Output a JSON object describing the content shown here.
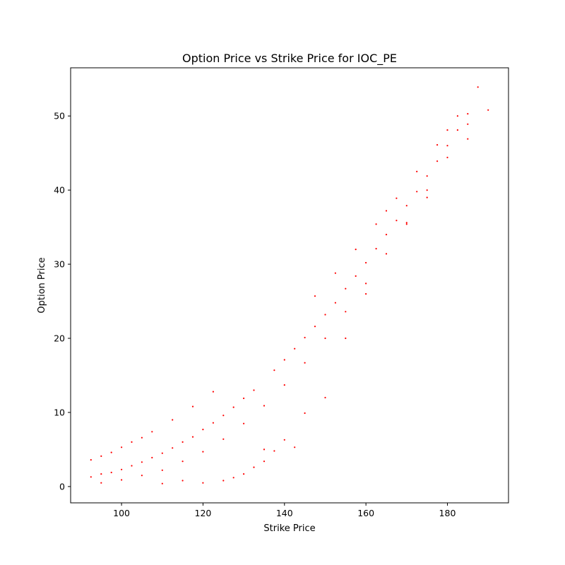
{
  "chart_data": {
    "type": "scatter",
    "title": "Option Price vs Strike Price for IOC_PE",
    "xlabel": "Strike Price",
    "ylabel": "Option Price",
    "xlim": [
      87.5,
      195
    ],
    "ylim": [
      -2.2,
      56.5
    ],
    "x_ticks": [
      100,
      120,
      140,
      160,
      180
    ],
    "y_ticks": [
      0,
      10,
      20,
      30,
      40,
      50
    ],
    "grid": false,
    "legend": "none",
    "marker_color": "#ff0000",
    "points": [
      {
        "x": 92.5,
        "y": 3.6
      },
      {
        "x": 92.5,
        "y": 1.3
      },
      {
        "x": 95,
        "y": 4.1
      },
      {
        "x": 95,
        "y": 1.7
      },
      {
        "x": 95,
        "y": 0.5
      },
      {
        "x": 97.5,
        "y": 4.6
      },
      {
        "x": 97.5,
        "y": 1.9
      },
      {
        "x": 100,
        "y": 5.3
      },
      {
        "x": 100,
        "y": 2.3
      },
      {
        "x": 100,
        "y": 0.9
      },
      {
        "x": 102.5,
        "y": 6.0
      },
      {
        "x": 102.5,
        "y": 2.8
      },
      {
        "x": 105,
        "y": 6.6
      },
      {
        "x": 105,
        "y": 3.3
      },
      {
        "x": 105,
        "y": 1.5
      },
      {
        "x": 107.5,
        "y": 7.4
      },
      {
        "x": 107.5,
        "y": 3.9
      },
      {
        "x": 110,
        "y": 4.5
      },
      {
        "x": 110,
        "y": 2.2
      },
      {
        "x": 110,
        "y": 0.4
      },
      {
        "x": 112.5,
        "y": 9.0
      },
      {
        "x": 112.5,
        "y": 5.2
      },
      {
        "x": 115,
        "y": 6.0
      },
      {
        "x": 115,
        "y": 3.4
      },
      {
        "x": 115,
        "y": 0.8
      },
      {
        "x": 117.5,
        "y": 10.8
      },
      {
        "x": 117.5,
        "y": 6.7
      },
      {
        "x": 120,
        "y": 7.7
      },
      {
        "x": 120,
        "y": 4.7
      },
      {
        "x": 120,
        "y": 0.5
      },
      {
        "x": 122.5,
        "y": 12.8
      },
      {
        "x": 122.5,
        "y": 8.6
      },
      {
        "x": 125,
        "y": 9.6
      },
      {
        "x": 125,
        "y": 6.4
      },
      {
        "x": 125,
        "y": 0.8
      },
      {
        "x": 127.5,
        "y": 10.7
      },
      {
        "x": 127.5,
        "y": 1.2
      },
      {
        "x": 130,
        "y": 11.9
      },
      {
        "x": 130,
        "y": 8.5
      },
      {
        "x": 130,
        "y": 1.7
      },
      {
        "x": 132.5,
        "y": 13.0
      },
      {
        "x": 132.5,
        "y": 2.6
      },
      {
        "x": 135,
        "y": 10.9
      },
      {
        "x": 135,
        "y": 5.0
      },
      {
        "x": 135,
        "y": 3.4
      },
      {
        "x": 137.5,
        "y": 15.7
      },
      {
        "x": 137.5,
        "y": 4.8
      },
      {
        "x": 140,
        "y": 17.1
      },
      {
        "x": 140,
        "y": 13.7
      },
      {
        "x": 140,
        "y": 6.3
      },
      {
        "x": 142.5,
        "y": 18.6
      },
      {
        "x": 142.5,
        "y": 5.3
      },
      {
        "x": 145,
        "y": 20.1
      },
      {
        "x": 145,
        "y": 16.7
      },
      {
        "x": 145,
        "y": 9.9
      },
      {
        "x": 147.5,
        "y": 25.7
      },
      {
        "x": 147.5,
        "y": 21.6
      },
      {
        "x": 150,
        "y": 23.2
      },
      {
        "x": 150,
        "y": 20.0
      },
      {
        "x": 150,
        "y": 12.0
      },
      {
        "x": 152.5,
        "y": 28.8
      },
      {
        "x": 152.5,
        "y": 24.8
      },
      {
        "x": 155,
        "y": 26.7
      },
      {
        "x": 155,
        "y": 23.6
      },
      {
        "x": 155,
        "y": 20.0
      },
      {
        "x": 157.5,
        "y": 32.0
      },
      {
        "x": 157.5,
        "y": 28.4
      },
      {
        "x": 160,
        "y": 30.2
      },
      {
        "x": 160,
        "y": 27.4
      },
      {
        "x": 160,
        "y": 26.0
      },
      {
        "x": 162.5,
        "y": 35.4
      },
      {
        "x": 162.5,
        "y": 32.1
      },
      {
        "x": 165,
        "y": 37.2
      },
      {
        "x": 165,
        "y": 34.0
      },
      {
        "x": 165,
        "y": 31.4
      },
      {
        "x": 167.5,
        "y": 38.9
      },
      {
        "x": 167.5,
        "y": 35.9
      },
      {
        "x": 170,
        "y": 37.9
      },
      {
        "x": 170,
        "y": 35.6
      },
      {
        "x": 170,
        "y": 35.4
      },
      {
        "x": 172.5,
        "y": 42.5
      },
      {
        "x": 172.5,
        "y": 39.8
      },
      {
        "x": 175,
        "y": 41.9
      },
      {
        "x": 175,
        "y": 40.0
      },
      {
        "x": 175,
        "y": 39.0
      },
      {
        "x": 177.5,
        "y": 46.1
      },
      {
        "x": 177.5,
        "y": 43.9
      },
      {
        "x": 180,
        "y": 48.1
      },
      {
        "x": 180,
        "y": 46.0
      },
      {
        "x": 180,
        "y": 44.4
      },
      {
        "x": 182.5,
        "y": 50.0
      },
      {
        "x": 182.5,
        "y": 48.1
      },
      {
        "x": 185,
        "y": 50.3
      },
      {
        "x": 185,
        "y": 48.9
      },
      {
        "x": 185,
        "y": 46.9
      },
      {
        "x": 187.5,
        "y": 53.9
      },
      {
        "x": 190,
        "y": 50.8
      }
    ]
  }
}
